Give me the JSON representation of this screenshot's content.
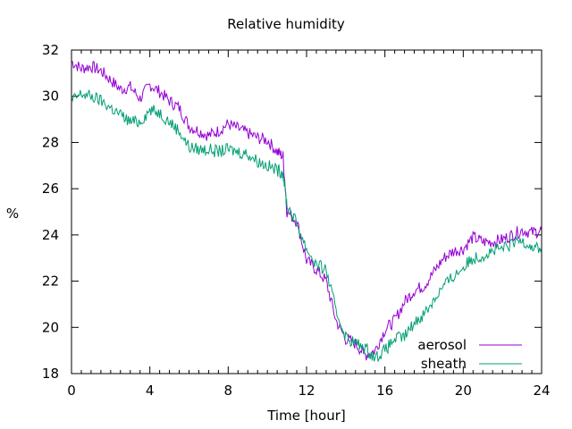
{
  "chart_data": {
    "type": "line",
    "title": "Relative humidity",
    "xlabel": "Time [hour]",
    "ylabel": "%",
    "xlim": [
      0,
      24
    ],
    "ylim": [
      18,
      32
    ],
    "xticks": [
      0,
      4,
      8,
      12,
      16,
      20,
      24
    ],
    "yticks": [
      18,
      20,
      22,
      24,
      26,
      28,
      30,
      32
    ],
    "grid": false,
    "legend_position": "bottom-right",
    "series": [
      {
        "name": "aerosol",
        "color": "#9400d3",
        "x": [
          0,
          0.5,
          1,
          1.5,
          2,
          2.5,
          3,
          3.5,
          4,
          4.5,
          5,
          5.5,
          6,
          6.5,
          7,
          7.5,
          8,
          8.5,
          9,
          9.5,
          10,
          10.5,
          10.8,
          11,
          11.5,
          12,
          12.5,
          13,
          13.5,
          14,
          14.5,
          15,
          15.5,
          16,
          16.5,
          17,
          17.5,
          18,
          18.5,
          19,
          19.5,
          20,
          20.5,
          21,
          21.5,
          22,
          22.5,
          23,
          23.5,
          24
        ],
        "y": [
          31.5,
          31.2,
          31.3,
          31.1,
          30.7,
          30.3,
          30.4,
          29.9,
          30.5,
          30.2,
          29.8,
          29.5,
          28.7,
          28.5,
          28.3,
          28.5,
          28.8,
          28.6,
          28.4,
          28.2,
          28.1,
          27.6,
          27.4,
          25.0,
          24.6,
          22.9,
          22.5,
          22.0,
          20.3,
          19.5,
          19.3,
          18.8,
          19.0,
          19.9,
          20.3,
          21.1,
          21.6,
          21.8,
          22.4,
          23.0,
          23.3,
          23.4,
          23.9,
          23.7,
          23.7,
          23.8,
          24.0,
          24.2,
          24.1,
          24.2
        ]
      },
      {
        "name": "sheath",
        "color": "#009e73",
        "x": [
          0,
          0.5,
          1,
          1.5,
          2,
          2.5,
          3,
          3.5,
          4,
          4.5,
          5,
          5.5,
          6,
          6.5,
          7,
          7.5,
          8,
          8.5,
          9,
          9.5,
          10,
          10.5,
          10.8,
          11,
          11.5,
          12,
          12.5,
          13,
          13.5,
          14,
          14.5,
          15,
          15.5,
          16,
          16.5,
          17,
          17.5,
          18,
          18.5,
          19,
          19.5,
          20,
          20.5,
          21,
          21.5,
          22,
          22.5,
          23,
          23.5,
          24
        ],
        "y": [
          29.8,
          30.1,
          30.0,
          29.8,
          29.5,
          29.2,
          28.9,
          28.9,
          29.4,
          29.3,
          28.9,
          28.5,
          27.8,
          27.7,
          27.7,
          27.6,
          27.7,
          27.6,
          27.5,
          27.2,
          27.0,
          26.8,
          26.7,
          25.3,
          24.5,
          23.4,
          22.7,
          22.5,
          20.7,
          19.6,
          19.3,
          19.1,
          18.7,
          19.0,
          19.5,
          19.6,
          20.2,
          20.6,
          21.2,
          21.8,
          22.2,
          22.6,
          23.0,
          23.1,
          23.3,
          23.4,
          23.6,
          23.8,
          23.5,
          23.4
        ]
      }
    ]
  }
}
